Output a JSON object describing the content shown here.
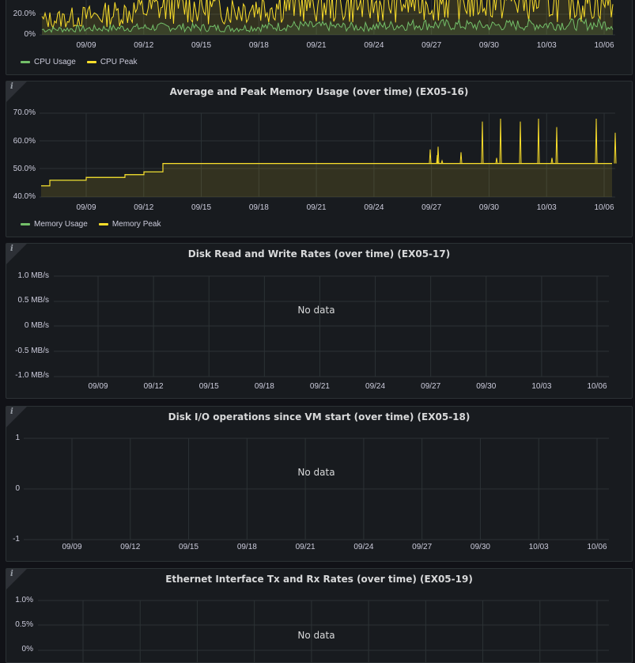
{
  "colors": {
    "background": "#111217",
    "panel": "#181b1f",
    "grid": "#2c3235",
    "usage": "#73bf69",
    "peak": "#fade2a"
  },
  "panels": {
    "cpu": {
      "yticks": [
        "20.0%",
        "0%"
      ],
      "xticks": [
        "09/09",
        "09/12",
        "09/15",
        "09/18",
        "09/21",
        "09/24",
        "09/27",
        "09/30",
        "10/03",
        "10/06"
      ],
      "legend": [
        {
          "label": "CPU Usage",
          "color": "#73bf69"
        },
        {
          "label": "CPU Peak",
          "color": "#fade2a"
        }
      ]
    },
    "memory": {
      "title": "Average and Peak Memory Usage (over time) (EX05-16)",
      "yticks": [
        "70.0%",
        "60.0%",
        "50.0%",
        "40.0%"
      ],
      "xticks": [
        "09/09",
        "09/12",
        "09/15",
        "09/18",
        "09/21",
        "09/24",
        "09/27",
        "09/30",
        "10/03",
        "10/06"
      ],
      "legend": [
        {
          "label": "Memory Usage",
          "color": "#73bf69"
        },
        {
          "label": "Memory Peak",
          "color": "#fade2a"
        }
      ]
    },
    "disk_rw": {
      "title": "Disk Read and Write Rates (over time) (EX05-17)",
      "yticks": [
        "1.0 MB/s",
        "0.5 MB/s",
        "0 MB/s",
        "-0.5 MB/s",
        "-1.0 MB/s"
      ],
      "xticks": [
        "09/09",
        "09/12",
        "09/15",
        "09/18",
        "09/21",
        "09/24",
        "09/27",
        "09/30",
        "10/03",
        "10/06"
      ],
      "nodata": "No data"
    },
    "disk_io": {
      "title": "Disk I/O operations since VM start (over time) (EX05-18)",
      "yticks": [
        "1",
        "0",
        "-1"
      ],
      "xticks": [
        "09/09",
        "09/12",
        "09/15",
        "09/18",
        "09/21",
        "09/24",
        "09/27",
        "09/30",
        "10/03",
        "10/06"
      ],
      "nodata": "No data"
    },
    "ethernet": {
      "title": "Ethernet Interface Tx and Rx Rates (over time) (EX05-19)",
      "yticks": [
        "1.0%",
        "0.5%",
        "0%"
      ],
      "nodata": "No data"
    }
  },
  "chart_data": [
    {
      "type": "line",
      "x": [
        "09/09",
        "09/12",
        "09/15",
        "09/18",
        "09/21",
        "09/24",
        "09/27",
        "09/30",
        "10/03",
        "10/06"
      ],
      "series": [
        {
          "name": "CPU Usage",
          "values": [
            4,
            5,
            6,
            5,
            7,
            6,
            8,
            7,
            8,
            8
          ]
        },
        {
          "name": "CPU Peak",
          "values": [
            10,
            14,
            20,
            18,
            22,
            20,
            24,
            24,
            23,
            24
          ]
        }
      ],
      "ylim": [
        0,
        30
      ]
    },
    {
      "type": "line",
      "title": "Average and Peak Memory Usage (over time) (EX05-16)",
      "x": [
        "09/06",
        "09/07",
        "09/09",
        "09/10",
        "09/11",
        "09/12",
        "09/13",
        "09/15",
        "09/18",
        "09/21",
        "09/24",
        "09/27",
        "09/30",
        "10/03",
        "10/06",
        "10/07"
      ],
      "series": [
        {
          "name": "Memory Usage",
          "values": [
            44,
            46,
            47,
            47,
            48,
            49,
            52,
            52,
            52,
            52,
            52,
            52,
            52,
            52,
            52,
            52
          ]
        },
        {
          "name": "Memory Peak",
          "values": [
            44,
            46,
            47,
            47,
            48,
            49,
            52,
            53,
            53,
            53,
            52,
            56,
            67,
            68,
            68,
            63
          ]
        }
      ],
      "ylim": [
        40,
        70
      ]
    }
  ]
}
